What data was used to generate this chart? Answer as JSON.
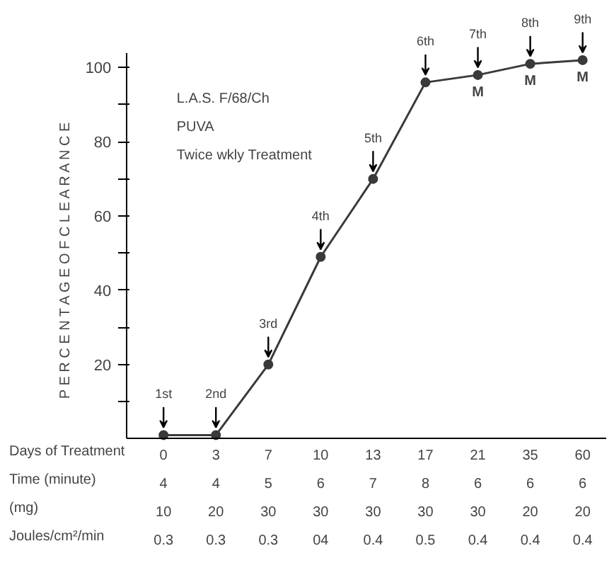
{
  "chart_data": {
    "type": "line",
    "title": "L.A.S. F/68/Ch",
    "subtitle": "PUVA\nTwice wkly Treatment",
    "xlabel": "Days of Treatment",
    "ylabel": "P E R C E N T A G E    O F    C L E A R A N C E",
    "categories": [
      "0",
      "3",
      "7",
      "10",
      "13",
      "17",
      "21",
      "35",
      "60"
    ],
    "series": [
      {
        "color": "#3a3a3a",
        "values": [
          1,
          1,
          20,
          49,
          70,
          96,
          98,
          101,
          102
        ]
      }
    ],
    "ylim": [
      0,
      104
    ],
    "yticks": [
      {
        "value": 10,
        "label": null
      },
      20,
      {
        "value": 30,
        "label": null
      },
      40,
      {
        "value": 50,
        "label": null
      },
      60,
      {
        "value": 70,
        "label": null
      },
      80,
      {
        "value": 90,
        "label": null
      },
      100
    ],
    "marker": "circle",
    "line_style": "solid",
    "grid": false,
    "annotations": [
      {
        "text": "1st",
        "x": "0",
        "y": 1
      },
      {
        "text": "2nd",
        "x": "3",
        "y": 1
      },
      {
        "text": "3rd",
        "x": "7",
        "y": 20
      },
      {
        "text": "4th",
        "x": "10",
        "y": 49
      },
      {
        "text": "5th",
        "x": "13",
        "y": 70
      },
      {
        "text": "6th",
        "x": "17",
        "y": 96
      },
      {
        "text": "7th",
        "x": "21",
        "y": 98
      },
      {
        "text": "M",
        "x": "21",
        "y": 98
      },
      {
        "text": "8th",
        "x": "35",
        "y": 101
      },
      {
        "text": "M",
        "x": "35",
        "y": 101
      },
      {
        "text": "9th",
        "x": "60",
        "y": 102
      },
      {
        "text": "M",
        "x": "60",
        "y": 102
      },
      "Time (minute)",
      "4",
      "4",
      "5",
      "6",
      "7",
      "8",
      "6",
      "6",
      "6",
      "(mg)",
      "10",
      "20",
      "30",
      "30",
      "30",
      "30",
      "30",
      "20",
      "20",
      "Joules/cm²/min",
      "0.3",
      "0.3",
      "0.3",
      "04",
      "0.4",
      "0.5",
      "0.4",
      "0.4",
      "0.4"
    ]
  }
}
